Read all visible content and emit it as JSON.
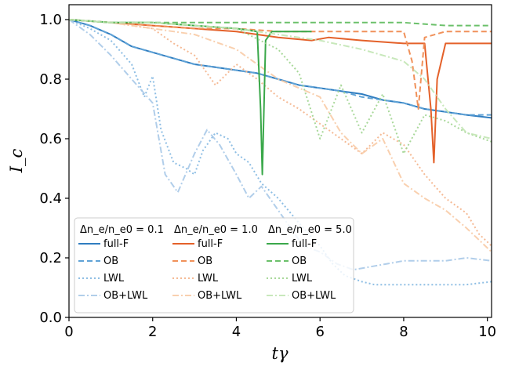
{
  "chart_data": {
    "type": "line",
    "xlabel": "tγ",
    "ylabel": "I_c",
    "xlim": [
      0,
      10.1
    ],
    "ylim": [
      0,
      1.05
    ],
    "x_ticks": [
      "0",
      "2",
      "4",
      "6",
      "8",
      "10"
    ],
    "y_ticks": [
      "0.0",
      "0.2",
      "0.4",
      "0.6",
      "0.8",
      "1.0"
    ],
    "grid": false,
    "legend_placement": "lower-left",
    "legend_columns": [
      {
        "header": "Δn_e/n_e0 = 0.1",
        "color": "#2f7dc0"
      },
      {
        "header": "Δn_e/n_e0 = 1.0",
        "color": "#e4612a"
      },
      {
        "header": "Δn_e/n_e0 = 5.0",
        "color": "#3aa84a"
      }
    ],
    "legend_rows": [
      "full-F",
      "OB",
      "LWL",
      "OB+LWL"
    ],
    "series": [
      {
        "name": "full-F",
        "group": "0.1",
        "color": "#2f7dc0",
        "style": "solid",
        "opacity": 1,
        "width": 2,
        "x": [
          0,
          0.5,
          1.0,
          1.5,
          2.0,
          2.5,
          3.0,
          3.5,
          4.0,
          4.5,
          5.0,
          5.5,
          6.0,
          6.5,
          7.0,
          7.5,
          8.0,
          8.5,
          9.0,
          9.5,
          10.1
        ],
        "y": [
          1.0,
          0.98,
          0.95,
          0.91,
          0.89,
          0.87,
          0.85,
          0.84,
          0.83,
          0.82,
          0.8,
          0.78,
          0.77,
          0.76,
          0.75,
          0.73,
          0.72,
          0.7,
          0.69,
          0.68,
          0.67
        ]
      },
      {
        "name": "OB",
        "group": "0.1",
        "color": "#5fa2d6",
        "style": "dashed",
        "opacity": 1,
        "width": 2,
        "x": [
          0,
          0.5,
          1.0,
          1.5,
          2.0,
          2.5,
          3.0,
          3.5,
          4.0,
          4.5,
          5.0,
          5.5,
          6.0,
          6.5,
          7.0,
          7.5,
          8.0,
          8.5,
          9.0,
          9.5,
          10.1
        ],
        "y": [
          1.0,
          0.98,
          0.95,
          0.91,
          0.89,
          0.87,
          0.85,
          0.84,
          0.83,
          0.82,
          0.8,
          0.78,
          0.77,
          0.76,
          0.74,
          0.73,
          0.72,
          0.7,
          0.69,
          0.68,
          0.68
        ]
      },
      {
        "name": "LWL",
        "group": "0.1",
        "color": "#7ab3df",
        "style": "dotted",
        "opacity": 0.85,
        "width": 2,
        "x": [
          0,
          0.5,
          1.0,
          1.5,
          1.8,
          2.0,
          2.2,
          2.5,
          2.8,
          3.0,
          3.2,
          3.5,
          3.8,
          4.0,
          4.3,
          4.6,
          5.0,
          5.3,
          5.6,
          6.0,
          6.3,
          6.6,
          7.0,
          7.3,
          7.6,
          8.0,
          8.5,
          9.0,
          9.5,
          10.1
        ],
        "y": [
          1.0,
          0.97,
          0.93,
          0.85,
          0.74,
          0.81,
          0.63,
          0.52,
          0.5,
          0.48,
          0.56,
          0.62,
          0.6,
          0.55,
          0.52,
          0.45,
          0.4,
          0.35,
          0.3,
          0.24,
          0.18,
          0.14,
          0.12,
          0.11,
          0.11,
          0.11,
          0.11,
          0.11,
          0.11,
          0.12
        ]
      },
      {
        "name": "OB+LWL",
        "group": "0.1",
        "color": "#a8c9e8",
        "style": "dashdot",
        "opacity": 0.9,
        "width": 2,
        "x": [
          0,
          0.5,
          1.0,
          1.5,
          2.0,
          2.3,
          2.6,
          3.0,
          3.3,
          3.6,
          4.0,
          4.3,
          4.6,
          5.0,
          5.3,
          5.6,
          6.0,
          6.4,
          6.8,
          7.2,
          7.6,
          8.0,
          8.5,
          9.0,
          9.5,
          10.1
        ],
        "y": [
          1.0,
          0.95,
          0.88,
          0.8,
          0.72,
          0.48,
          0.42,
          0.55,
          0.63,
          0.58,
          0.48,
          0.4,
          0.44,
          0.36,
          0.3,
          0.24,
          0.22,
          0.18,
          0.16,
          0.17,
          0.18,
          0.19,
          0.19,
          0.19,
          0.2,
          0.19
        ]
      },
      {
        "name": "full-F",
        "group": "1.0",
        "color": "#e4612a",
        "style": "solid",
        "opacity": 1,
        "width": 2,
        "x": [
          0,
          1.0,
          2.0,
          3.0,
          4.0,
          5.0,
          5.8,
          6.2,
          7.0,
          8.0,
          8.5,
          8.65,
          8.72,
          8.8,
          9.0,
          9.5,
          10.1
        ],
        "y": [
          1.0,
          0.99,
          0.98,
          0.97,
          0.96,
          0.94,
          0.93,
          0.94,
          0.93,
          0.92,
          0.92,
          0.7,
          0.52,
          0.8,
          0.92,
          0.92,
          0.92
        ]
      },
      {
        "name": "OB",
        "group": "1.0",
        "color": "#f0915a",
        "style": "dashed",
        "opacity": 1,
        "width": 2,
        "x": [
          0,
          1.0,
          2.0,
          3.0,
          4.0,
          5.0,
          6.0,
          7.0,
          8.0,
          8.2,
          8.35,
          8.5,
          9.0,
          10.1
        ],
        "y": [
          1.0,
          0.99,
          0.98,
          0.97,
          0.97,
          0.96,
          0.96,
          0.96,
          0.96,
          0.86,
          0.7,
          0.94,
          0.96,
          0.96
        ]
      },
      {
        "name": "LWL",
        "group": "1.0",
        "color": "#f4b28a",
        "style": "dotted",
        "opacity": 0.9,
        "width": 2,
        "x": [
          0,
          1.0,
          2.0,
          2.5,
          3.0,
          3.5,
          4.0,
          4.5,
          5.0,
          5.5,
          6.0,
          6.5,
          7.0,
          7.5,
          8.0,
          8.5,
          9.0,
          9.5,
          9.8,
          10.1
        ],
        "y": [
          1.0,
          0.99,
          0.97,
          0.92,
          0.88,
          0.78,
          0.85,
          0.8,
          0.74,
          0.7,
          0.65,
          0.6,
          0.55,
          0.62,
          0.58,
          0.48,
          0.4,
          0.35,
          0.28,
          0.24
        ]
      },
      {
        "name": "OB+LWL",
        "group": "1.0",
        "color": "#f8cba6",
        "style": "dashdot",
        "opacity": 0.9,
        "width": 2,
        "x": [
          0,
          1.0,
          2.0,
          3.0,
          4.0,
          5.0,
          6.0,
          6.5,
          7.0,
          7.5,
          8.0,
          8.5,
          9.0,
          9.5,
          10.1
        ],
        "y": [
          1.0,
          0.99,
          0.97,
          0.95,
          0.9,
          0.8,
          0.74,
          0.62,
          0.55,
          0.6,
          0.45,
          0.4,
          0.36,
          0.3,
          0.22
        ]
      },
      {
        "name": "full-F",
        "group": "5.0",
        "color": "#3aa84a",
        "style": "solid",
        "opacity": 1,
        "width": 2,
        "x": [
          0,
          1.0,
          2.0,
          3.0,
          4.0,
          4.5,
          4.58,
          4.62,
          4.7,
          4.85,
          5.0,
          5.5,
          5.8
        ],
        "y": [
          1.0,
          0.99,
          0.99,
          0.98,
          0.97,
          0.96,
          0.7,
          0.48,
          0.93,
          0.96,
          0.96,
          0.96,
          0.96
        ]
      },
      {
        "name": "OB",
        "group": "5.0",
        "color": "#6bc06a",
        "style": "dashed",
        "opacity": 1,
        "width": 2,
        "x": [
          0,
          1.0,
          2.0,
          3.0,
          4.0,
          5.0,
          6.0,
          7.0,
          8.0,
          9.0,
          10.1
        ],
        "y": [
          1.0,
          0.99,
          0.99,
          0.99,
          0.99,
          0.99,
          0.99,
          0.99,
          0.99,
          0.98,
          0.98
        ]
      },
      {
        "name": "LWL",
        "group": "5.0",
        "color": "#9fd48e",
        "style": "dotted",
        "opacity": 0.9,
        "width": 2,
        "x": [
          0,
          1.0,
          2.0,
          3.0,
          4.0,
          5.0,
          5.5,
          6.0,
          6.5,
          7.0,
          7.5,
          8.0,
          8.5,
          9.0,
          9.5,
          10.1
        ],
        "y": [
          1.0,
          0.99,
          0.99,
          0.98,
          0.97,
          0.9,
          0.82,
          0.6,
          0.78,
          0.62,
          0.75,
          0.55,
          0.68,
          0.66,
          0.62,
          0.59
        ]
      },
      {
        "name": "OB+LWL",
        "group": "5.0",
        "color": "#c2e5b4",
        "style": "dashdot",
        "opacity": 0.9,
        "width": 2,
        "x": [
          0,
          1.0,
          2.0,
          3.0,
          4.0,
          5.0,
          6.0,
          7.0,
          8.0,
          8.5,
          9.0,
          9.5,
          10.1
        ],
        "y": [
          1.0,
          0.99,
          0.99,
          0.98,
          0.97,
          0.95,
          0.93,
          0.9,
          0.86,
          0.8,
          0.7,
          0.62,
          0.6
        ]
      }
    ]
  }
}
